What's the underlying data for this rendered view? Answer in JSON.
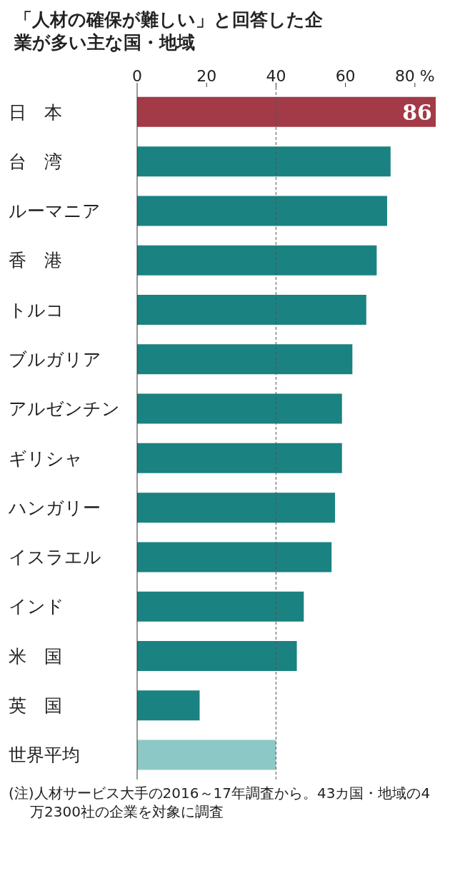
{
  "chart_data": {
    "type": "bar",
    "orientation": "horizontal",
    "title": "「人材の確保が難しい」と回答した企業が多い主な国・地域",
    "categories": [
      "日　本",
      "台　湾",
      "ルーマニア",
      "香　港",
      "トルコ",
      "ブルガリア",
      "アルゼンチン",
      "ギリシャ",
      "ハンガリー",
      "イスラエル",
      "インド",
      "米　国",
      "英　国",
      "世界平均"
    ],
    "values": [
      86,
      73,
      72,
      69,
      66,
      62,
      59,
      59,
      57,
      56,
      48,
      46,
      18,
      40
    ],
    "colors": [
      "#a23a47",
      "#1a8281",
      "#1a8281",
      "#1a8281",
      "#1a8281",
      "#1a8281",
      "#1a8281",
      "#1a8281",
      "#1a8281",
      "#1a8281",
      "#1a8281",
      "#1a8281",
      "#1a8281",
      "#8cc9c6"
    ],
    "value_labels": [
      "86",
      null,
      null,
      null,
      null,
      null,
      null,
      null,
      null,
      null,
      null,
      null,
      null,
      null
    ],
    "xlim": [
      0,
      86
    ],
    "xticks": [
      0,
      20,
      40,
      60,
      {
        "value": 80,
        "label": "80 %"
      }
    ],
    "ref_lines": [
      {
        "axis": "x",
        "value": 40,
        "line_style": "dashed",
        "color": "#555555"
      }
    ],
    "grid": false,
    "legend": false,
    "annotations": [
      "(注)人材サービス大手の2016～17年調査から。43カ国・地域の4万2300社の企業を対象に調査"
    ]
  }
}
